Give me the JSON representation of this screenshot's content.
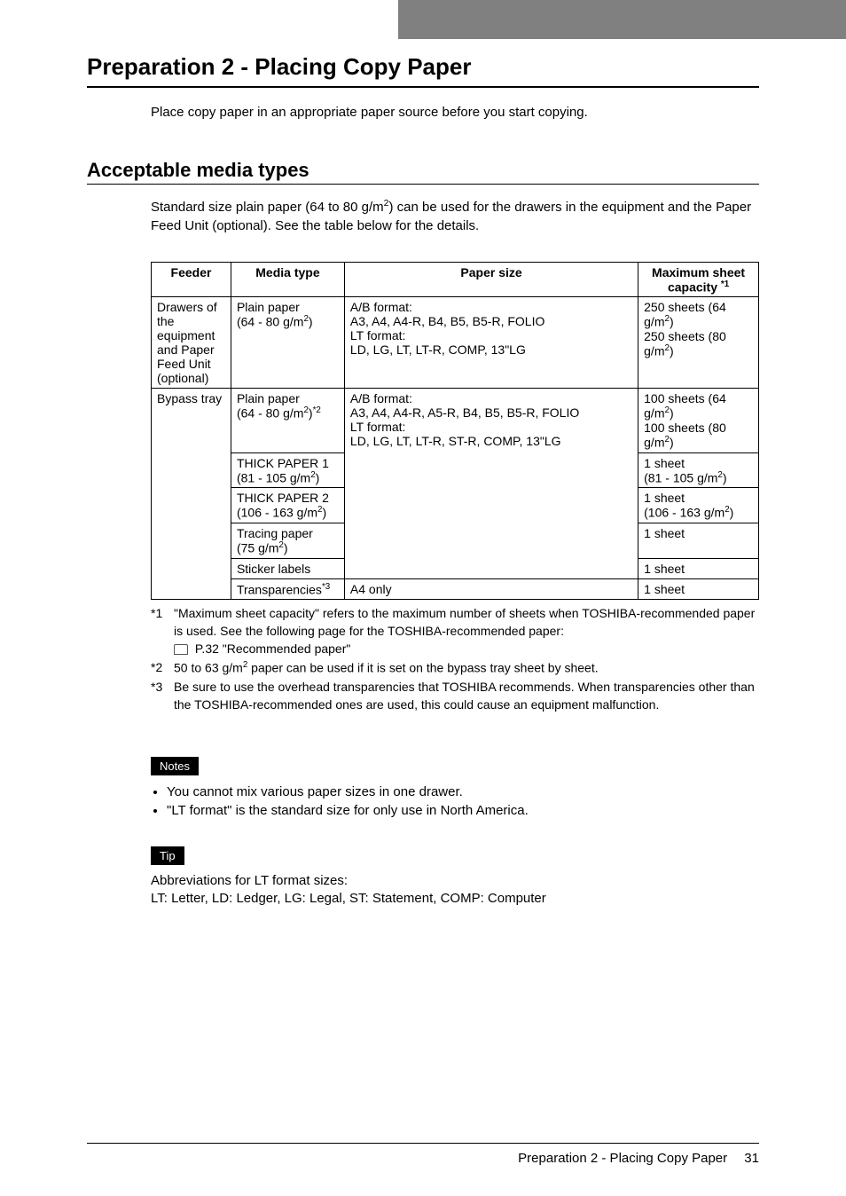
{
  "heading": "Preparation 2 - Placing Copy Paper",
  "intro": "Place copy paper in an appropriate paper source before you start copying.",
  "subheading": "Acceptable media types",
  "subintro_pre": "Standard size plain paper (64 to 80 g/m",
  "subintro_post": ") can be used for the drawers in the equipment and the Paper Feed Unit (optional). See the table below for the details.",
  "table": {
    "headers": {
      "feeder": "Feeder",
      "media": "Media type",
      "size": "Paper size",
      "capacity_pre": "Maximum sheet capacity ",
      "capacity_sup": "*1"
    },
    "row1": {
      "feeder": "Drawers of the equipment and Paper Feed Unit (optional)",
      "media_pre": "Plain paper\n(64 - 80 g/m",
      "media_post": ")",
      "size": "A/B format:\nA3, A4, A4-R, B4, B5, B5-R, FOLIO\nLT format:\nLD, LG, LT, LT-R, COMP, 13\"LG",
      "cap_l1_pre": "250 sheets (64 g/m",
      "cap_l1_post": ")",
      "cap_l2_pre": "250 sheets (80 g/m",
      "cap_l2_post": ")"
    },
    "bypass_label": "Bypass tray",
    "bypass_size": "A/B format:\nA3, A4, A4-R, A5-R, B4, B5, B5-R, FOLIO\nLT format:\nLD, LG, LT, LT-R, ST-R, COMP, 13\"LG",
    "bypass": {
      "r1_media_pre": "Plain paper\n(64 - 80 g/m",
      "r1_media_sup2": "*2",
      "r1_cap_l1_pre": "100 sheets (64 g/m",
      "r1_cap_l1_post": ")",
      "r1_cap_l2_pre": "100 sheets (80 g/m",
      "r1_cap_l2_post": ")",
      "r2_media_pre": "THICK PAPER 1\n(81 - 105 g/m",
      "r2_media_post": ")",
      "r2_cap_l1": "1 sheet",
      "r2_cap_l2_pre": "(81 - 105 g/m",
      "r2_cap_l2_post": ")",
      "r3_media_pre": "THICK PAPER 2\n(106 - 163 g/m",
      "r3_media_post": ")",
      "r3_cap_l1": "1 sheet",
      "r3_cap_l2_pre": "(106 - 163 g/m",
      "r3_cap_l2_post": ")",
      "r4_media_pre": "Tracing paper\n(75 g/m",
      "r4_media_post": ")",
      "r4_cap": "1 sheet",
      "r5_media": "Sticker labels",
      "r5_cap": "1 sheet",
      "r6_media_pre": "Transparencies",
      "r6_media_sup": "*3",
      "r6_size": "A4 only",
      "r6_cap": "1 sheet"
    }
  },
  "footnotes": {
    "n1": "*1",
    "t1a": "\"Maximum sheet capacity\" refers to the maximum number of sheets when TOSHIBA-recommended paper is used. See the following page for the TOSHIBA-recommended paper:",
    "t1b": " P.32 \"Recommended paper\"",
    "n2": "*2",
    "t2_pre": "50 to 63 g/m",
    "t2_post": " paper can be used if it is set on the bypass tray sheet by sheet.",
    "n3": "*3",
    "t3": "Be sure to use the overhead transparencies that TOSHIBA recommends. When transparencies other than the TOSHIBA-recommended ones are used, this could cause an equipment malfunction."
  },
  "notes": {
    "label": "Notes",
    "n1": "You cannot mix various paper sizes in one drawer.",
    "n2": "\"LT format\" is the standard size for only use in North America."
  },
  "tip": {
    "label": "Tip",
    "l1": "Abbreviations for LT format sizes:",
    "l2": "LT: Letter, LD: Ledger, LG: Legal, ST: Statement, COMP: Computer"
  },
  "footer": {
    "text": "Preparation 2 - Placing Copy Paper  31"
  }
}
